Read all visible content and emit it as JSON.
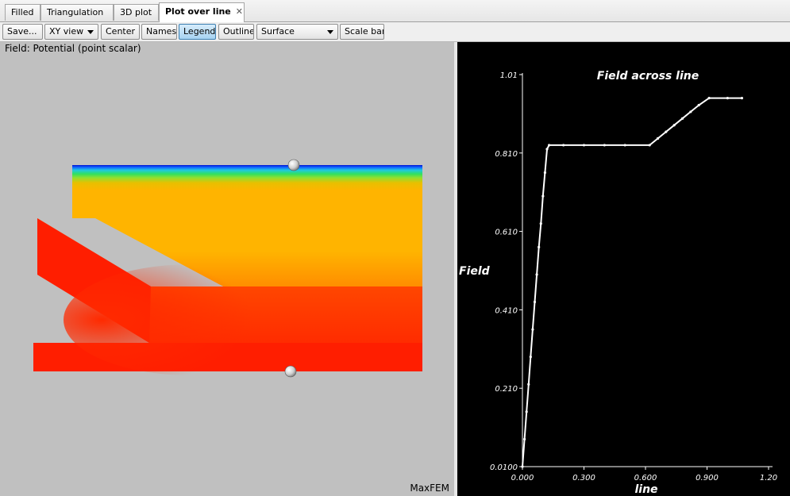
{
  "tabs": [
    {
      "label": "Filled",
      "active": false
    },
    {
      "label": "Triangulation",
      "active": false
    },
    {
      "label": "3D plot",
      "active": false
    },
    {
      "label": "Plot over line",
      "active": true
    }
  ],
  "close_icon": "✕",
  "toolbar": {
    "save_label": "Save...",
    "view_select": "XY view",
    "center_label": "Center",
    "names_label": "Names",
    "legend_label": "Legend",
    "legend_pressed": true,
    "outline_label": "Outline",
    "surface_select": "Surface",
    "scalebar_label": "Scale bar"
  },
  "left_view": {
    "field_label": "Field: Potential (point scalar)",
    "brand": "MaxFEM",
    "colors": {
      "background": "#c0c0c0",
      "high": "#ff1e00",
      "mid": "#ffb400",
      "low_green": "#30e060",
      "low_blue": "#0010d0"
    }
  },
  "chart_data": {
    "type": "line",
    "title": "Field across line",
    "xlabel": "line",
    "ylabel": "Field",
    "xlim": [
      0.0,
      1.2
    ],
    "ylim": [
      0.01,
      1.01
    ],
    "x_ticks": [
      "0.000",
      "0.300",
      "0.600",
      "0.900",
      "1.20"
    ],
    "y_ticks": [
      "0.0100",
      "0.210",
      "0.410",
      "0.610",
      "0.810",
      "1.01"
    ],
    "grid": false,
    "background": "#000000",
    "line_color": "#ffffff",
    "series": [
      {
        "x": [
          0.0,
          0.01,
          0.02,
          0.03,
          0.04,
          0.05,
          0.06,
          0.07,
          0.08,
          0.09,
          0.1,
          0.11,
          0.12,
          0.13,
          0.2,
          0.3,
          0.4,
          0.5,
          0.62,
          0.66,
          0.7,
          0.74,
          0.78,
          0.82,
          0.86,
          0.91,
          1.0,
          1.07
        ],
        "y": [
          0.01,
          0.08,
          0.15,
          0.22,
          0.29,
          0.36,
          0.43,
          0.5,
          0.57,
          0.63,
          0.7,
          0.76,
          0.82,
          0.83,
          0.83,
          0.83,
          0.83,
          0.83,
          0.83,
          0.847,
          0.864,
          0.881,
          0.898,
          0.915,
          0.932,
          0.95,
          0.95,
          0.95
        ]
      }
    ]
  }
}
